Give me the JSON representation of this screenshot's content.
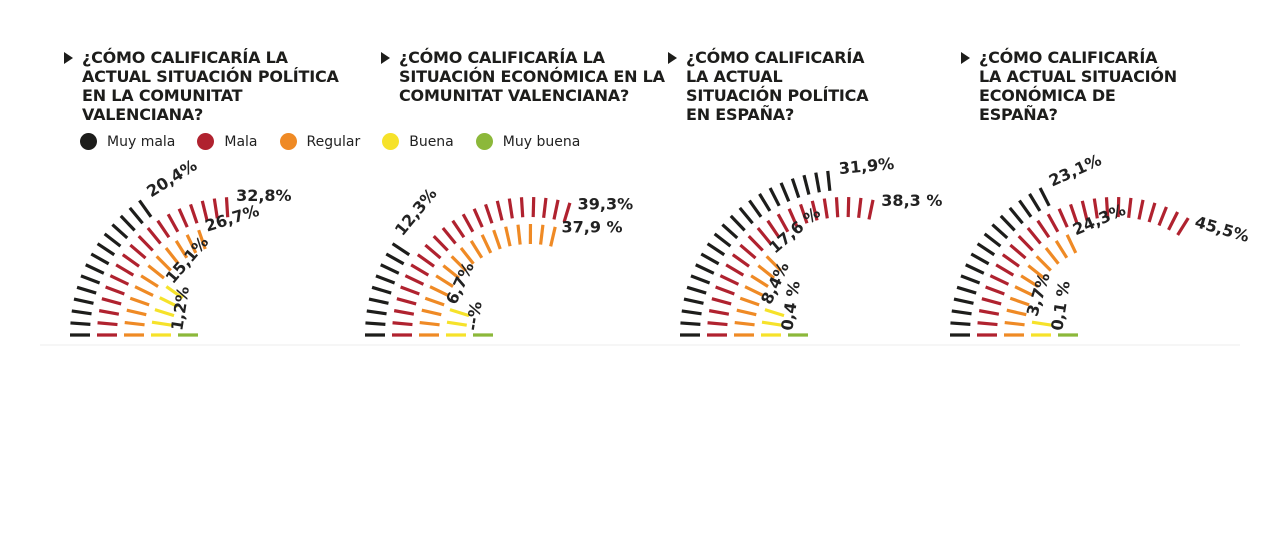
{
  "legend": [
    {
      "label": "Muy mala",
      "color": "#1d1d1b"
    },
    {
      "label": "Mala",
      "color": "#b0222f"
    },
    {
      "label": "Regular",
      "color": "#ef8a25"
    },
    {
      "label": "Buena",
      "color": "#f6e22a"
    },
    {
      "label": "Muy buena",
      "color": "#8cb83a"
    }
  ],
  "chart_data": [
    {
      "type": "radial-bar",
      "title": "¿Cómo calificaría la actual situación política en la Comunitat Valenciana?",
      "categories": [
        "Muy mala",
        "Mala",
        "Regular",
        "Buena",
        "Muy buena"
      ],
      "values": [
        20.4,
        32.8,
        26.7,
        15.1,
        1.2
      ],
      "labels": [
        "20,4%",
        "32,8%",
        "26,7%",
        "15,1%",
        "1,2%"
      ]
    },
    {
      "type": "radial-bar",
      "title": "¿Cómo calificaría la situación económica en la Comunitat Valenciana?",
      "categories": [
        "Muy mala",
        "Mala",
        "Regular",
        "Buena",
        "Muy buena"
      ],
      "values": [
        12.3,
        39.3,
        37.9,
        6.7,
        null
      ],
      "labels": [
        "12,3%",
        "39,3%",
        "37,9 %",
        "6,7%",
        "--%"
      ]
    },
    {
      "type": "radial-bar",
      "title": "¿Cómo calificaría la actual situación política en España?",
      "categories": [
        "Muy mala",
        "Mala",
        "Regular",
        "Buena",
        "Muy buena"
      ],
      "values": [
        31.9,
        38.3,
        17.6,
        8.4,
        0.4
      ],
      "labels": [
        "31,9%",
        "38,3 %",
        "17,6 %",
        "8,4%",
        "0,4 %"
      ]
    },
    {
      "type": "radial-bar",
      "title": "¿Cómo calificaría la actual situación económica de España?",
      "categories": [
        "Muy mala",
        "Mala",
        "Regular",
        "Buena",
        "Muy buena"
      ],
      "values": [
        23.1,
        45.5,
        24.3,
        3.7,
        0.1
      ],
      "labels": [
        "23,1%",
        "45,5%",
        "24,3%",
        "3,7%",
        "0,1 %"
      ]
    }
  ]
}
